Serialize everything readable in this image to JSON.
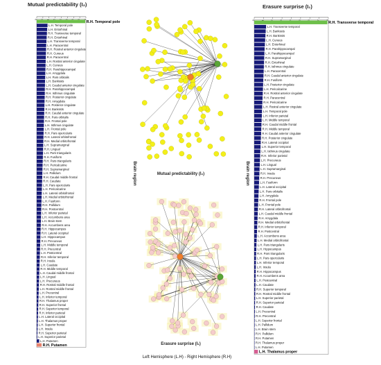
{
  "footer": "Left Hemisphere (L.H) - Right Hemisphere (R.H)",
  "colors": {
    "bar_default": "#161a78",
    "bar_top": "#6dbf4a",
    "bar_bottom": "#e8826d",
    "bar_bottom_right": "#d65e92",
    "node_yellow": "#f3ef1a",
    "node_hub_orange": "#f07d2a",
    "node_hub_green": "#5aa536",
    "node_pink": "#f5cccc",
    "halo": "#f7f0a8",
    "edge": "#222222"
  },
  "chart_data": [
    {
      "type": "bar",
      "orientation": "horizontal",
      "title": "Mutual predictability (I₂)",
      "ylabel": "Brain region",
      "xlim": [
        0,
        4
      ],
      "ticks": [
        0,
        0.5,
        1,
        1.5,
        2,
        2.5,
        3,
        3.5,
        4
      ],
      "grid": false,
      "categories": [
        "R.H. Temporal pole",
        "L.H. Temporal pole",
        "L.H. Entorhinal",
        "R.H. Transverse temporal",
        "R.H. Entorhinal",
        "L.H. Transverse temporal",
        "L.H. Paracentral",
        "R.H. Rostral anterior cingulate",
        "R.H. Cuneus",
        "R.H. Paracentral",
        "L.H. Rostral anterior cingulate",
        "L.H. Cuneus",
        "R.H. Parahippocampal",
        "L.H. Amygdala",
        "L.H. Pars orbitalis",
        "L.H. Bankssts",
        "L.H. Caudal anterior cingulate",
        "R.H. Parahippocampal",
        "R.H. Isthmus cingulate",
        "R.H. Posterior cingulate",
        "R.H. Amygdala",
        "L.H. Posterior cingulate",
        "R.H. Bankssts",
        "R.H. Caudal anterior cingulate",
        "R.H. Pars orbitalis",
        "R.H. Frontal pole",
        "L.H. Isthmus cingulate",
        "L.H. Frontal pole",
        "R.H. Pars opercularis",
        "R.H. Lateral orbitofrontal",
        "R.H. Medial orbitofrontal",
        "L.H. Supramarginal",
        "R.H. Lingual",
        "L.H. Pars triangularis",
        "R.H. Fusiform",
        "R.H. Pars triangularis",
        "R.H. Pericalcarine",
        "R.H. Supramarginal",
        "L.H. Pallidum",
        "R.H. Caudal middle frontal",
        "R.H. Caudate",
        "L.H. Pars opercularis",
        "L.H. Pericalcarine",
        "L.H. Lateral orbitofrontal",
        "L.H. Medial orbitofrontal",
        "L.H. Fusiform",
        "R.H. Pallidum",
        "R.H. Postcentral",
        "L.H. Inferior parietal",
        "L.H. Accumbens area",
        "L.H. Brain stem",
        "R.H. Accumbens area",
        "R.H. Hippocampus",
        "R.H. Lateral occipital",
        "L.H. Hippocampus",
        "R.H. Precuneus",
        "L.H. Middle temporal",
        "R.H. Precentral",
        "L.H. Postcentral",
        "R.H. Inferior temporal",
        "R.H. Insula",
        "L.H. Caudate",
        "R.H. Middle temporal",
        "L.H. Caudal middle frontal",
        "L.H. Lingual",
        "L.H. Precuneus",
        "R.H. Rostral middle frontal",
        "L.H. Rostral middle frontal",
        "L.H. Precentral",
        "L.H. Inferior temporal",
        "R.H. Thalamus proper",
        "R.H. Superior frontal",
        "R.H. Superior temporal",
        "R.H. Inferior parietal",
        "L.H. Lateral occipital",
        "L.H. Thalamus proper",
        "L.H. Superior frontal",
        "L.H. Insula",
        "R.H. Superior parietal",
        "L.H. Superior parietal",
        "L.H. Putamen",
        "R.H. Putamen"
      ],
      "values": [
        3.95,
        0.88,
        0.85,
        0.83,
        0.81,
        0.79,
        0.77,
        0.76,
        0.75,
        0.74,
        0.73,
        0.72,
        0.71,
        0.7,
        0.69,
        0.68,
        0.67,
        0.66,
        0.66,
        0.65,
        0.64,
        0.63,
        0.62,
        0.61,
        0.6,
        0.59,
        0.58,
        0.57,
        0.56,
        0.55,
        0.54,
        0.53,
        0.52,
        0.51,
        0.5,
        0.49,
        0.48,
        0.47,
        0.46,
        0.45,
        0.44,
        0.43,
        0.42,
        0.41,
        0.4,
        0.39,
        0.38,
        0.37,
        0.36,
        0.35,
        0.34,
        0.33,
        0.32,
        0.31,
        0.3,
        0.29,
        0.28,
        0.27,
        0.26,
        0.25,
        0.24,
        0.23,
        0.22,
        0.21,
        0.2,
        0.19,
        0.18,
        0.17,
        0.16,
        0.15,
        0.14,
        0.13,
        0.12,
        0.11,
        0.1,
        0.09,
        0.08,
        0.07,
        0.06,
        0.05,
        0.2,
        0.4
      ]
    },
    {
      "type": "bar",
      "orientation": "horizontal",
      "title": "Erasure surprise (I₁)",
      "ylabel": "Brain region",
      "xlim": [
        0,
        8
      ],
      "ticks": [
        0,
        1,
        2,
        3,
        4,
        5,
        6,
        7,
        8
      ],
      "grid": false,
      "categories": [
        "R.H. Transverse temporal",
        "L.H. Transverse temporal",
        "L.H. Bankssts",
        "R.H. Bankssts",
        "L.H. Cuneus",
        "L.H. Entorhinal",
        "R.H. Parahippocampal",
        "L.H. Parahippocampal",
        "R.H. Supramarginal",
        "R.H. Entorhinal",
        "R.H. Isthmus cingulate",
        "L.H. Paracentral",
        "R.H. Caudal anterior cingulate",
        "R.H. Fusiform",
        "L.H. Posterior cingulate",
        "L.H. Pericalcarine",
        "R.H. Rostral anterior cingulate",
        "R.H. Paracentral",
        "R.H. Pericalcarine",
        "L.H. Rostral anterior cingulate",
        "L.H. Temporal pole",
        "L.H. Inferior parietal",
        "L.H. Middle temporal",
        "R.H. Caudal middle frontal",
        "R.H. Middle temporal",
        "R.H. Caudal anterior cingulate",
        "R.H. Posterior cingulate",
        "R.H. Lateral occipital",
        "L.H. Superior temporal",
        "L.H. Isthmus cingulate",
        "R.H. Inferior parietal",
        "L.H. Precuneus",
        "L.H. Lingual",
        "L.H. Supramarginal",
        "R.H. Insula",
        "R.H. Precuneus",
        "L.H. Fusiform",
        "L.H. Lateral occipital",
        "L.H. Pars orbitalis",
        "L.H. Amygdala",
        "R.H. Frontal pole",
        "L.H. Frontal pole",
        "R.H. Lateral orbitofrontal",
        "L.H. Caudal middle frontal",
        "R.H. Amygdala",
        "R.H. Medial orbitofrontal",
        "R.H. Inferior temporal",
        "R.H. Postcentral",
        "L.H. Accumbens area",
        "L.H. Medial orbitofrontal",
        "L.H. Pars triangularis",
        "L.H. Hippocampus",
        "R.H. Pars triangularis",
        "L.H. Pars opercularis",
        "L.H. Inferior temporal",
        "L.H. Insula",
        "R.H. Hippocampus",
        "R.H. Accumbens area",
        "L.H. Postcentral",
        "L.H. Caudate",
        "R.H. Superior temporal",
        "R.H. Rostral middle frontal",
        "L.H. Superior parietal",
        "R.H. Superior parietal",
        "R.H. Caudate",
        "L.H. Precentral",
        "R.H. Precentral",
        "L.H. Superior frontal",
        "L.H. Pallidum",
        "L.H. Brain stem",
        "R.H. Pallidum",
        "R.H. Putamen",
        "R.H. Thalamus proper",
        "L.H. Putamen",
        "L.H. Thalamus proper"
      ],
      "values": [
        7.9,
        1.28,
        1.24,
        1.21,
        1.18,
        1.15,
        1.12,
        1.1,
        1.08,
        1.06,
        1.04,
        1.02,
        1.0,
        0.98,
        0.96,
        0.94,
        0.92,
        0.9,
        0.88,
        0.86,
        0.84,
        0.82,
        0.8,
        0.78,
        0.76,
        0.74,
        0.72,
        0.7,
        0.68,
        0.66,
        0.64,
        0.62,
        0.6,
        0.58,
        0.56,
        0.54,
        0.52,
        0.5,
        0.48,
        0.46,
        0.44,
        0.42,
        0.4,
        0.38,
        0.36,
        0.34,
        0.32,
        0.3,
        0.28,
        0.26,
        0.24,
        0.22,
        0.2,
        0.19,
        0.18,
        0.17,
        0.16,
        0.15,
        0.14,
        0.13,
        0.12,
        0.11,
        0.1,
        0.09,
        0.08,
        0.07,
        0.06,
        0.05,
        0.05,
        0.04,
        0.04,
        0.03,
        0.03,
        0.02,
        0.4
      ]
    }
  ],
  "networks": {
    "top_label": "Mutual predictability (I₂)",
    "bottom_label": "Erasure surprise (I₁)"
  }
}
